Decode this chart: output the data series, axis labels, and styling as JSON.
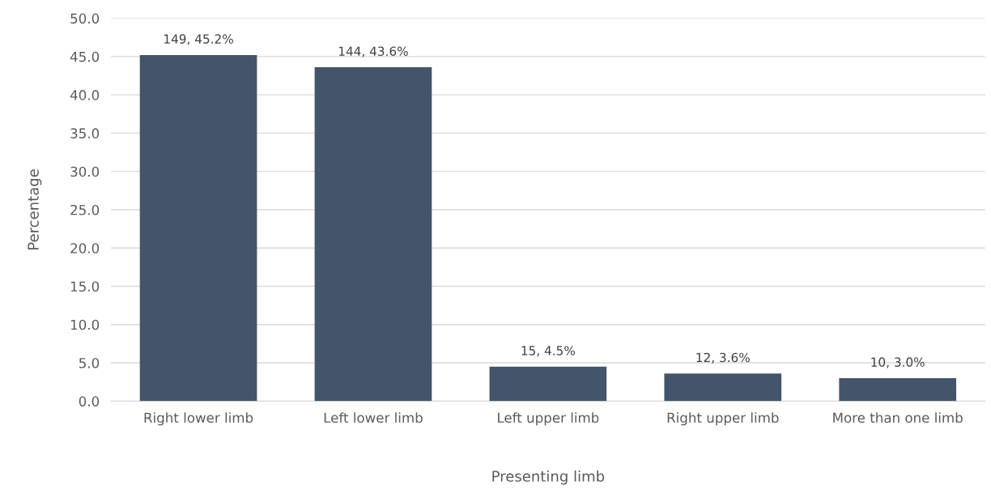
{
  "chart_data": {
    "type": "bar",
    "xlabel": "Presenting limb",
    "ylabel": "Percentage",
    "categories": [
      "Right lower limb",
      "Left lower limb",
      "Left upper limb",
      "Right upper limb",
      "More than one limb"
    ],
    "values": [
      45.2,
      43.6,
      4.5,
      3.6,
      3.0
    ],
    "value_labels": [
      "149, 45.2%",
      "144, 43.6%",
      "15, 4.5%",
      "12, 3.6%",
      "10, 3.0%"
    ],
    "color": "#44546a",
    "ylim": [
      0,
      50
    ],
    "yticks": [
      {
        "value": 0,
        "label": "0.0"
      },
      {
        "value": 5,
        "label": "5.0"
      },
      {
        "value": 10,
        "label": "10.0"
      },
      {
        "value": 15,
        "label": "15.0"
      },
      {
        "value": 20,
        "label": "20.0"
      },
      {
        "value": 25,
        "label": "25.0"
      },
      {
        "value": 30,
        "label": "30.0"
      },
      {
        "value": 35,
        "label": "35.0"
      },
      {
        "value": 40,
        "label": "40.0"
      },
      {
        "value": 45,
        "label": "45.0"
      },
      {
        "value": 50,
        "label": "50.0"
      }
    ],
    "grid": "y",
    "legend": false
  }
}
